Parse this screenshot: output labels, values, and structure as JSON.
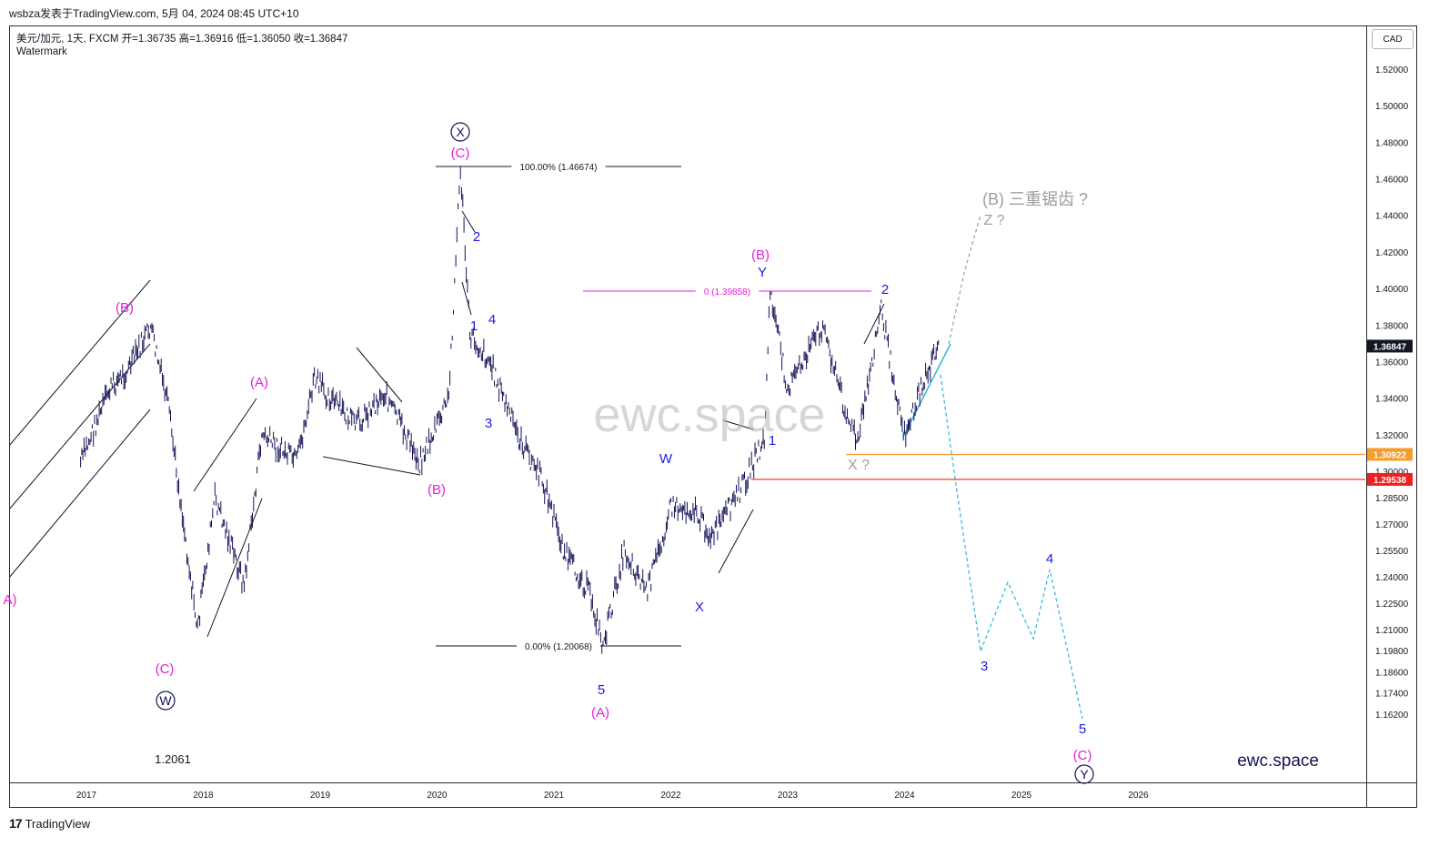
{
  "header": {
    "publisher_line": "wsbza发表于TradingView.com,  5月 04, 2024 08:45 UTC+10",
    "symbol_line": "美元/加元, 1天, FXCM  开=1.36735  高=1.36916  低=1.36050  收=1.36847",
    "watermark_label": "Watermark",
    "currency": "CAD"
  },
  "footer": {
    "brand_logo": "17",
    "brand_name": "TradingView"
  },
  "watermark_text": "ewc.space",
  "brand_corner": "ewc.space",
  "colors": {
    "candles": "#131257",
    "wave_blue": "#1a1ae6",
    "wave_magenta": "#e91edb",
    "projection": "#2ab7d8",
    "support_orange": "#f59c2f",
    "support_red": "#ef2020",
    "gray_label": "#9e9e9e"
  },
  "chart_data": {
    "type": "line",
    "x_ticks": [
      "2017",
      "2018",
      "2019",
      "2020",
      "2021",
      "2022",
      "2023",
      "2024",
      "2025",
      "2026"
    ],
    "y_ticks": [
      "1.52000",
      "1.50000",
      "1.48000",
      "1.46000",
      "1.44000",
      "1.42000",
      "1.40000",
      "1.38000",
      "1.36000",
      "1.34000",
      "1.32000",
      "1.30000",
      "1.28500",
      "1.27000",
      "1.25500",
      "1.24000",
      "1.22500",
      "1.21000",
      "1.19800",
      "1.18600",
      "1.17400",
      "1.16200"
    ],
    "price_tags": [
      {
        "label": "1.36847",
        "value": 1.36847,
        "color": "#131722"
      },
      {
        "label": "1.30922",
        "value": 1.30922,
        "color": "#f59c2f"
      },
      {
        "label": "1.29538",
        "value": 1.29538,
        "color": "#ef2020"
      }
    ],
    "fib_labels": {
      "top": "100.00% (1.46674)",
      "bottom": "0.00% (1.20068)",
      "b_level": "0 (1.39858)"
    },
    "price_anchor": "1.2061",
    "gray_labels": {
      "triple_zigzag": "(B) 三重锯齿 ?",
      "z_question": "Z ?",
      "x_question": "X ?"
    },
    "waves_magenta": [
      "(B)",
      "(A)",
      "(C)",
      "(B)",
      "(C)",
      "(A)",
      "(B)",
      "(C)",
      "A)"
    ],
    "waves_blue": [
      "2",
      "1",
      "4",
      "3",
      "5",
      "W",
      "X",
      "Y",
      "1",
      "2",
      "3",
      "4",
      "5"
    ],
    "waves_circled": [
      "X",
      "W",
      "Y"
    ],
    "series": [
      {
        "x": [
          2016.95,
          2017.2,
          2017.35,
          2017.55,
          2017.7,
          2017.95,
          2018.1,
          2018.35,
          2018.5,
          2018.8,
          2018.95,
          2019.3,
          2019.55,
          2019.85,
          2019.95,
          2020.1,
          2020.2,
          2020.28,
          2020.45,
          2020.7,
          2020.9,
          2021.1,
          2021.3,
          2021.42,
          2021.6,
          2021.8,
          2022.0,
          2022.2,
          2022.35,
          2022.6,
          2022.8,
          2022.85,
          2023.0,
          2023.3,
          2023.5,
          2023.6,
          2023.8,
          2023.85,
          2024.0,
          2024.2,
          2024.3
        ],
        "y": [
          1.305,
          1.345,
          1.355,
          1.379,
          1.335,
          1.21,
          1.285,
          1.235,
          1.32,
          1.305,
          1.35,
          1.325,
          1.343,
          1.305,
          1.318,
          1.34,
          1.4667,
          1.375,
          1.36,
          1.318,
          1.295,
          1.252,
          1.232,
          1.2007,
          1.255,
          1.232,
          1.28,
          1.278,
          1.262,
          1.29,
          1.317,
          1.3986,
          1.345,
          1.38,
          1.332,
          1.315,
          1.39,
          1.37,
          1.32,
          1.355,
          1.3685
        ]
      }
    ]
  }
}
